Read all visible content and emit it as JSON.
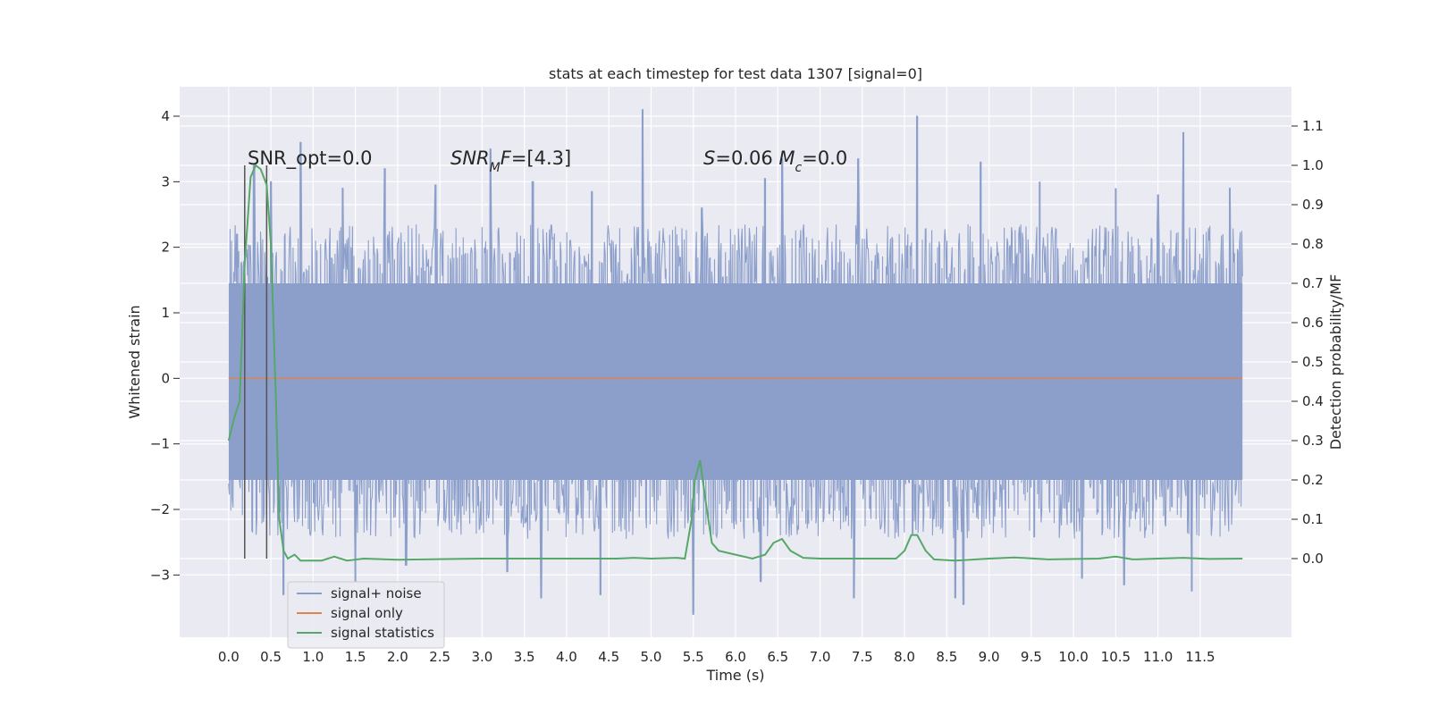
{
  "chart_data": {
    "type": "line",
    "title": "stats at each timestep for test data 1307 [signal=0]",
    "xlabel": "Time (s)",
    "ylabel": "Whitened strain",
    "ylabel_right": "Detection probability/MF",
    "xlim": [
      -0.58,
      12.58
    ],
    "ylim": [
      -3.95,
      4.45
    ],
    "ylim_right": [
      -0.2,
      1.2
    ],
    "x_ticks": [
      0.0,
      0.5,
      1.0,
      1.5,
      2.0,
      2.5,
      3.0,
      3.5,
      4.0,
      4.5,
      5.0,
      5.5,
      6.0,
      6.5,
      7.0,
      7.5,
      8.0,
      8.5,
      9.0,
      9.5,
      10.0,
      10.5,
      11.0,
      11.5
    ],
    "x_tick_labels": [
      "0.0",
      "0.5",
      "1.0",
      "1.5",
      "2.0",
      "2.5",
      "3.0",
      "3.5",
      "4.0",
      "4.5",
      "5.0",
      "5.5",
      "6.0",
      "6.5",
      "7.0",
      "7.5",
      "8.0",
      "8.5",
      "9.0",
      "9.5",
      "10.0",
      "10.5",
      "11.0",
      "11.5"
    ],
    "y_ticks": [
      -3,
      -2,
      -1,
      0,
      1,
      2,
      3,
      4
    ],
    "y_tick_labels": [
      "−3",
      "−2",
      "−1",
      "0",
      "1",
      "2",
      "3",
      "4"
    ],
    "y_right_ticks": [
      0.0,
      0.1,
      0.2,
      0.3,
      0.4,
      0.5,
      0.6,
      0.7,
      0.8,
      0.9,
      1.0,
      1.1
    ],
    "y_right_tick_labels": [
      "0.0",
      "0.1",
      "0.2",
      "0.3",
      "0.4",
      "0.5",
      "0.6",
      "0.7",
      "0.8",
      "0.9",
      "1.0",
      "1.1"
    ],
    "grid": true,
    "legend_position": "bottom-left",
    "series": [
      {
        "name": "signal+ noise",
        "axis": "left",
        "color": "#8c9fcb",
        "x_range": [
          0.0,
          12.0
        ],
        "typical_range": [
          -1.55,
          1.45
        ],
        "peaks": [
          {
            "x": 0.1,
            "y": 2.2
          },
          {
            "x": 0.3,
            "y": 3.25
          },
          {
            "x": 0.5,
            "y": 3.0
          },
          {
            "x": 0.85,
            "y": 3.6
          },
          {
            "x": 1.35,
            "y": 2.9
          },
          {
            "x": 1.85,
            "y": 3.2
          },
          {
            "x": 2.45,
            "y": 2.95
          },
          {
            "x": 3.1,
            "y": 3.5
          },
          {
            "x": 3.6,
            "y": 3.0
          },
          {
            "x": 4.3,
            "y": 2.85
          },
          {
            "x": 4.9,
            "y": 4.1
          },
          {
            "x": 5.6,
            "y": 2.6
          },
          {
            "x": 6.35,
            "y": 3.05
          },
          {
            "x": 6.55,
            "y": 3.35
          },
          {
            "x": 7.45,
            "y": 3.35
          },
          {
            "x": 8.15,
            "y": 4.0
          },
          {
            "x": 8.9,
            "y": 3.3
          },
          {
            "x": 9.6,
            "y": 3.0
          },
          {
            "x": 10.5,
            "y": 2.9
          },
          {
            "x": 11.0,
            "y": 2.8
          },
          {
            "x": 11.3,
            "y": 3.75
          },
          {
            "x": 11.85,
            "y": 2.9
          }
        ],
        "troughs": [
          {
            "x": 0.65,
            "y": -3.3
          },
          {
            "x": 1.5,
            "y": -3.1
          },
          {
            "x": 2.1,
            "y": -2.85
          },
          {
            "x": 3.3,
            "y": -2.95
          },
          {
            "x": 3.7,
            "y": -3.35
          },
          {
            "x": 4.4,
            "y": -3.3
          },
          {
            "x": 5.5,
            "y": -3.6
          },
          {
            "x": 6.3,
            "y": -3.1
          },
          {
            "x": 7.4,
            "y": -3.35
          },
          {
            "x": 8.6,
            "y": -3.35
          },
          {
            "x": 8.7,
            "y": -3.45
          },
          {
            "x": 10.1,
            "y": -3.05
          },
          {
            "x": 10.6,
            "y": -3.15
          },
          {
            "x": 11.4,
            "y": -3.25
          }
        ]
      },
      {
        "name": "signal only",
        "axis": "left",
        "color": "#dd8452",
        "x": [
          0.0,
          12.0
        ],
        "values": [
          0.0,
          0.0
        ]
      },
      {
        "name": "signal statistics",
        "axis": "right",
        "color": "#55a868",
        "x": [
          0.0,
          0.07,
          0.13,
          0.19,
          0.26,
          0.32,
          0.38,
          0.45,
          0.5,
          0.56,
          0.6,
          0.65,
          0.7,
          0.78,
          0.85,
          0.95,
          1.1,
          1.25,
          1.4,
          1.6,
          2.0,
          3.0,
          4.0,
          4.6,
          4.8,
          5.0,
          5.3,
          5.4,
          5.48,
          5.52,
          5.58,
          5.65,
          5.72,
          5.8,
          6.0,
          6.2,
          6.35,
          6.45,
          6.55,
          6.65,
          6.8,
          7.0,
          7.5,
          7.9,
          8.0,
          8.08,
          8.15,
          8.25,
          8.35,
          8.6,
          9.0,
          9.3,
          9.7,
          10.3,
          10.5,
          10.7,
          11.0,
          11.3,
          11.6,
          12.0
        ],
        "values": [
          0.3,
          0.36,
          0.4,
          0.75,
          0.97,
          1.0,
          0.99,
          0.95,
          0.8,
          0.4,
          0.1,
          0.02,
          0.0,
          0.01,
          -0.005,
          -0.005,
          -0.005,
          0.005,
          -0.005,
          0.0,
          -0.003,
          0.0,
          0.0,
          0.0,
          0.002,
          0.0,
          0.002,
          0.0,
          0.1,
          0.2,
          0.25,
          0.14,
          0.04,
          0.02,
          0.01,
          0.0,
          0.01,
          0.04,
          0.05,
          0.02,
          0.002,
          0.0,
          0.0,
          0.0,
          0.02,
          0.06,
          0.06,
          0.02,
          -0.002,
          -0.005,
          0.0,
          0.003,
          -0.002,
          0.0,
          0.005,
          -0.002,
          0.0,
          0.002,
          -0.001,
          0.0
        ]
      }
    ],
    "vertical_markers": {
      "color": "#555555",
      "x": [
        0.19,
        0.45
      ],
      "y_range": [
        -2.75,
        3.25
      ]
    },
    "annotations": [
      {
        "parts": [
          {
            "text": "SNR_opt=0.0"
          }
        ]
      },
      {
        "parts": [
          {
            "text": "SNR",
            "italic": true
          },
          {
            "text": "M",
            "italic": true,
            "sub": true
          },
          {
            "text": "F",
            "italic": true
          },
          {
            "text": "=[4.3]"
          }
        ]
      },
      {
        "parts": [
          {
            "text": "S",
            "italic": true
          },
          {
            "text": "=0.06   "
          },
          {
            "text": "M",
            "italic": true
          },
          {
            "text": "c",
            "italic": true,
            "sub": true
          },
          {
            "text": "=0.0"
          }
        ]
      }
    ]
  }
}
